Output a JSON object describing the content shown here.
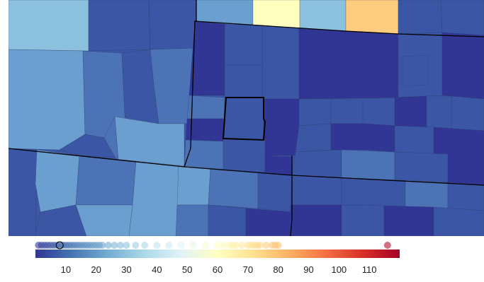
{
  "map": {
    "colors": {
      "dark_blue": "#313695",
      "blue": "#3b56a4",
      "mid_blue": "#4b73b5",
      "light_blue": "#6a9fcf",
      "pale_blue": "#8bc1de",
      "pale_yellow": "#ffffbf",
      "orange": "#fdcc7c",
      "selected_outline": "#000000"
    }
  },
  "legend": {
    "min": 0,
    "max": 120,
    "ticks": [
      "10",
      "20",
      "30",
      "40",
      "50",
      "60",
      "70",
      "80",
      "90",
      "100",
      "110"
    ],
    "tick_values": [
      10,
      20,
      30,
      40,
      50,
      60,
      70,
      80,
      90,
      100,
      110
    ],
    "gradient_stops": [
      "#313695",
      "#4575b4",
      "#74add1",
      "#abd9e9",
      "#e0f3f8",
      "#ffffbf",
      "#fee090",
      "#fdae61",
      "#f46d43",
      "#d73027",
      "#a50026"
    ],
    "dot_values": [
      1,
      2,
      3,
      4,
      5,
      6,
      7,
      8,
      9,
      10,
      11,
      12,
      13,
      14,
      15,
      16,
      17,
      18,
      19,
      20,
      21,
      22,
      24,
      26,
      28,
      30,
      33,
      36,
      40,
      44,
      48,
      52,
      56,
      60,
      62,
      64,
      65,
      66,
      68,
      70,
      71,
      72,
      73,
      74,
      76,
      78,
      79,
      80,
      116
    ],
    "selected_value": 8
  }
}
